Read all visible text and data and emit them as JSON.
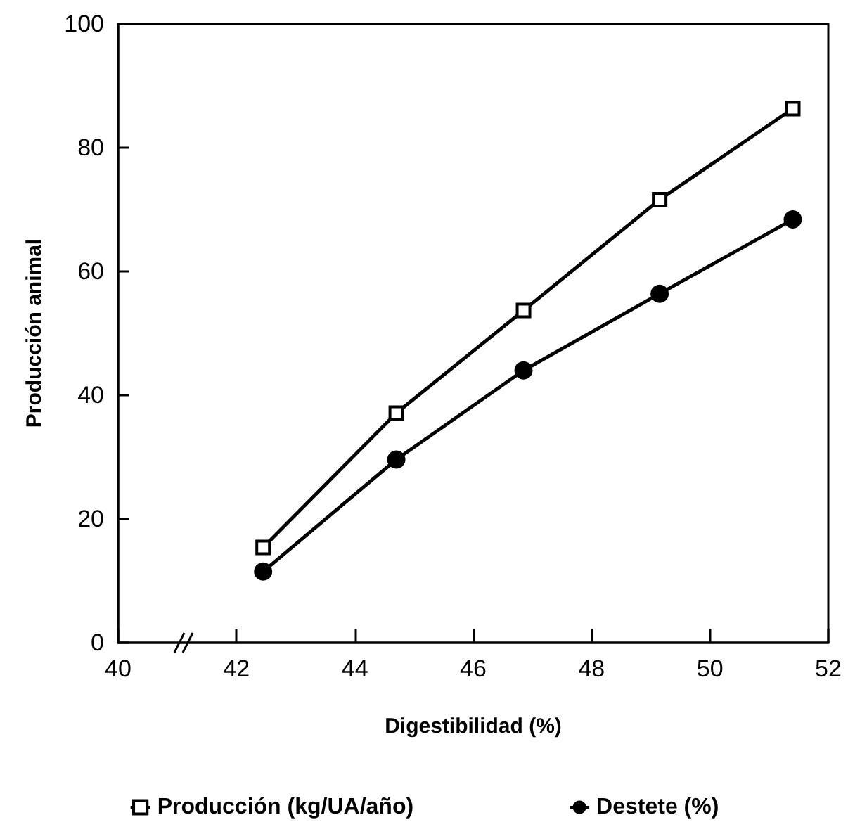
{
  "chart_data": {
    "type": "line",
    "xlabel": "Digestibilidad (%)",
    "ylabel": "Producción animal",
    "x": [
      42.45,
      44.7,
      46.85,
      49.15,
      51.4
    ],
    "series": [
      {
        "name": "Producción (kg/UA/año)",
        "color": "#000000",
        "marker": "square",
        "values": [
          15.4,
          37.1,
          53.7,
          71.6,
          86.3
        ]
      },
      {
        "name": "Destete (%)",
        "color": "#000000",
        "marker": "circle",
        "values": [
          11.5,
          29.6,
          44.0,
          56.4,
          68.4
        ]
      }
    ],
    "xlim": [
      40,
      52
    ],
    "xticks": [
      40,
      42,
      44,
      46,
      48,
      50,
      52
    ],
    "ylim": [
      0,
      100
    ],
    "yticks": [
      0,
      20,
      40,
      60,
      80,
      100
    ],
    "grid": false,
    "legend": "bottom",
    "line_style": "solid"
  }
}
